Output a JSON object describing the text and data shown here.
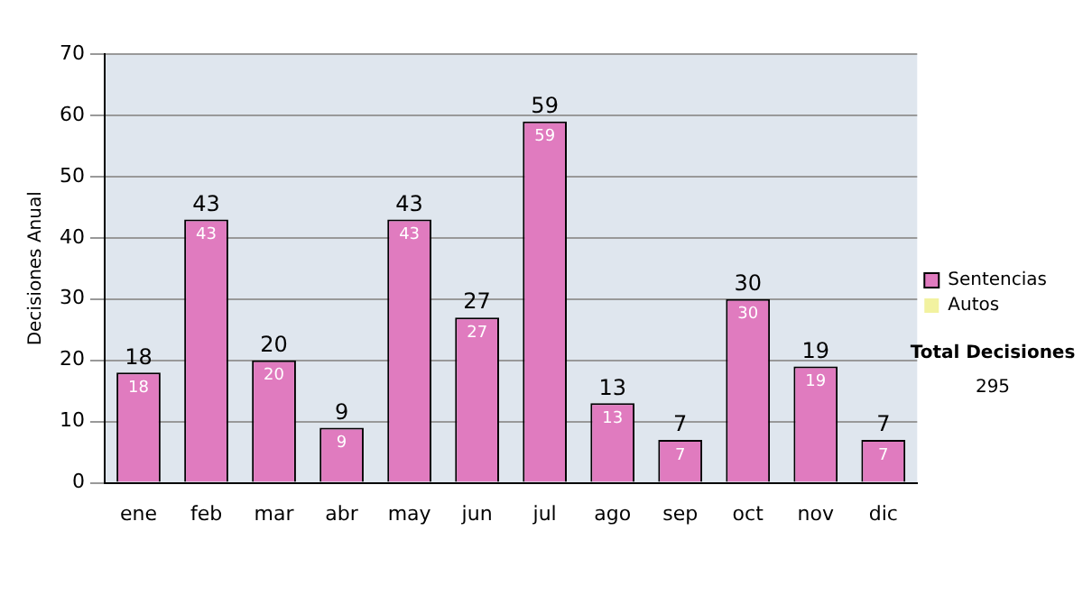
{
  "chart_data": {
    "type": "bar",
    "ylabel": "Decisiones Anual",
    "categories": [
      "ene",
      "feb",
      "mar",
      "abr",
      "may",
      "jun",
      "jul",
      "ago",
      "sep",
      "oct",
      "nov",
      "dic"
    ],
    "series": [
      {
        "name": "Sentencias",
        "color": "#e07bbf",
        "values": [
          18,
          43,
          20,
          9,
          43,
          27,
          59,
          13,
          7,
          30,
          19,
          7
        ],
        "value_labels": [
          "18",
          "43",
          "20",
          "9",
          "43",
          "27",
          "59",
          "13",
          "7",
          "30",
          "19",
          "7"
        ]
      },
      {
        "name": "Autos",
        "color": "#f2f2a0",
        "values": [
          0,
          0,
          0,
          0,
          0,
          0,
          0,
          0,
          0,
          0,
          0,
          0
        ]
      }
    ],
    "stacked": true,
    "totals": [
      "18",
      "43",
      "20",
      "9",
      "43",
      "27",
      "59",
      "13",
      "7",
      "30",
      "19",
      "7"
    ],
    "ylim": [
      0,
      70
    ],
    "yticks": [
      0,
      10,
      20,
      30,
      40,
      50,
      60,
      70
    ],
    "grid": "y",
    "legend": "right",
    "annotations": [
      "Total Decisiones",
      "295"
    ]
  }
}
